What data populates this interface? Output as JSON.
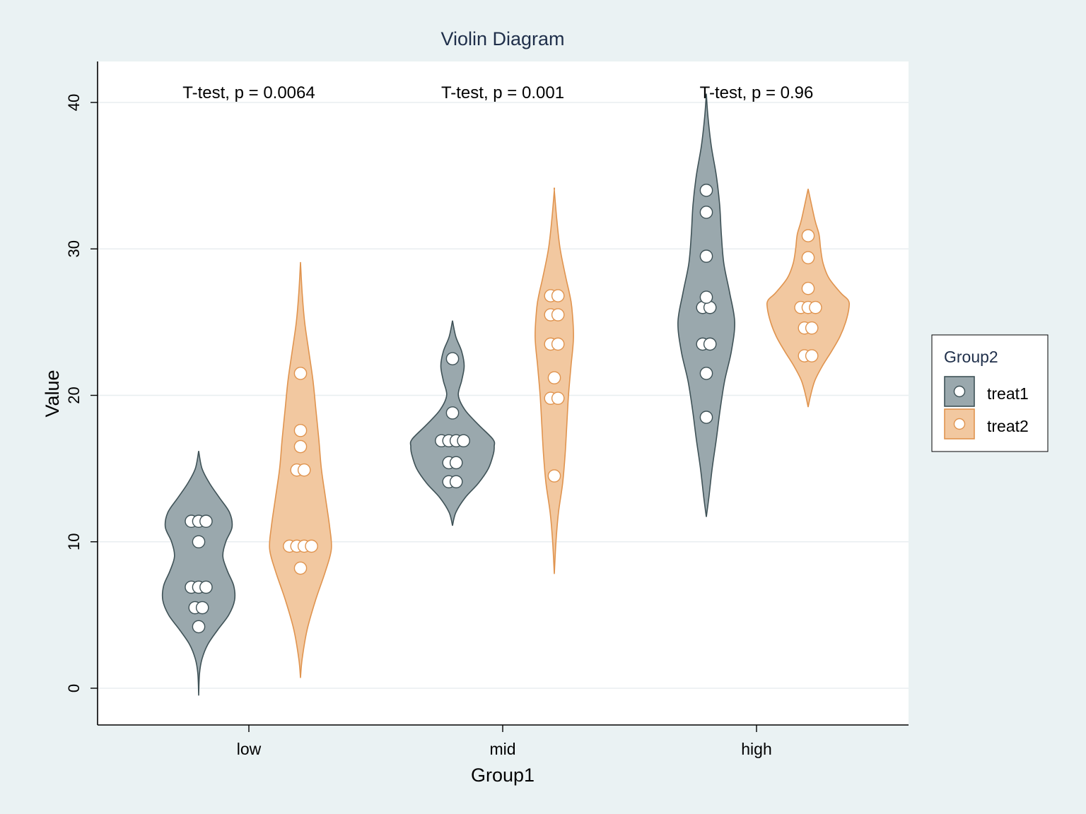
{
  "chart_data": {
    "type": "violin",
    "title": "Violin Diagram",
    "xlabel": "Group1",
    "ylabel": "Value",
    "ylim": [
      -2.5,
      43
    ],
    "yticks": [
      0,
      10,
      20,
      30,
      40
    ],
    "grid": true,
    "categories": [
      "low",
      "mid",
      "high"
    ],
    "legend": {
      "title": "Group2",
      "position": "right",
      "entries": [
        "treat1",
        "treat2"
      ]
    },
    "colors": {
      "treat1_fill": "#9aa8ad",
      "treat1_stroke": "#3f5257",
      "treat2_fill": "#f2c8a0",
      "treat2_stroke": "#e0944f",
      "background": "#eaf2f3",
      "panel": "#ffffff",
      "grid": "#e8eef0",
      "title": "#1f2f4a"
    },
    "annotations": [
      {
        "category": "low",
        "text": "T-test, p = 0.0064"
      },
      {
        "category": "mid",
        "text": "T-test, p = 0.001"
      },
      {
        "category": "high",
        "text": "T-test, p = 0.96"
      }
    ],
    "series": [
      {
        "name": "treat1",
        "violins": [
          {
            "category": "low",
            "ymin": -0.5,
            "ymax": 16.2,
            "profile": [
              [
                -0.5,
                0
              ],
              [
                1,
                0.02
              ],
              [
                2,
                0.08
              ],
              [
                3,
                0.22
              ],
              [
                4,
                0.46
              ],
              [
                5,
                0.72
              ],
              [
                6,
                0.86
              ],
              [
                7,
                0.84
              ],
              [
                8,
                0.69
              ],
              [
                9,
                0.58
              ],
              [
                10,
                0.65
              ],
              [
                11,
                0.8
              ],
              [
                12,
                0.74
              ],
              [
                13,
                0.5
              ],
              [
                14,
                0.26
              ],
              [
                15,
                0.08
              ],
              [
                16.2,
                0
              ]
            ],
            "points": [
              [
                0,
                4.2
              ],
              [
                -0.5,
                5.5
              ],
              [
                0.5,
                5.5
              ],
              [
                -1,
                6.9
              ],
              [
                0,
                6.9
              ],
              [
                1,
                6.9
              ],
              [
                0,
                10
              ],
              [
                -1,
                11.4
              ],
              [
                0,
                11.4
              ],
              [
                1,
                11.4
              ]
            ]
          },
          {
            "category": "mid",
            "ymin": 11.1,
            "ymax": 25.1,
            "profile": [
              [
                11.1,
                0
              ],
              [
                12,
                0.08
              ],
              [
                13,
                0.3
              ],
              [
                14,
                0.62
              ],
              [
                15,
                0.86
              ],
              [
                16,
                0.98
              ],
              [
                16.5,
                1
              ],
              [
                17,
                0.97
              ],
              [
                18,
                0.62
              ],
              [
                19,
                0.3
              ],
              [
                20,
                0.14
              ],
              [
                21,
                0.22
              ],
              [
                22,
                0.28
              ],
              [
                23,
                0.22
              ],
              [
                24,
                0.08
              ],
              [
                25.1,
                0
              ]
            ],
            "points": [
              [
                -0.5,
                14.1
              ],
              [
                0.5,
                14.1
              ],
              [
                -0.5,
                15.4
              ],
              [
                0.5,
                15.4
              ],
              [
                -1.5,
                16.9
              ],
              [
                -0.5,
                16.9
              ],
              [
                0.5,
                16.9
              ],
              [
                1.5,
                16.9
              ],
              [
                0,
                18.8
              ],
              [
                0,
                22.5
              ]
            ]
          },
          {
            "category": "high",
            "ymin": 11.7,
            "ymax": 40.6,
            "profile": [
              [
                11.7,
                0
              ],
              [
                13,
                0.06
              ],
              [
                15,
                0.14
              ],
              [
                17,
                0.24
              ],
              [
                19,
                0.33
              ],
              [
                21,
                0.44
              ],
              [
                23,
                0.6
              ],
              [
                25,
                0.68
              ],
              [
                27,
                0.56
              ],
              [
                29,
                0.42
              ],
              [
                31,
                0.36
              ],
              [
                33,
                0.32
              ],
              [
                35,
                0.24
              ],
              [
                37,
                0.12
              ],
              [
                39,
                0.04
              ],
              [
                40.6,
                0
              ]
            ],
            "points": [
              [
                0,
                18.5
              ],
              [
                0,
                21.5
              ],
              [
                -0.5,
                23.5
              ],
              [
                0.5,
                23.5
              ],
              [
                -0.5,
                26
              ],
              [
                0.5,
                26
              ],
              [
                0,
                26.7
              ],
              [
                0,
                29.5
              ],
              [
                0,
                32.5
              ],
              [
                0,
                34
              ]
            ]
          }
        ]
      },
      {
        "name": "treat2",
        "violins": [
          {
            "category": "low",
            "ymin": 0.7,
            "ymax": 29.1,
            "profile": [
              [
                0.7,
                0
              ],
              [
                2,
                0.04
              ],
              [
                4,
                0.16
              ],
              [
                6,
                0.36
              ],
              [
                8,
                0.6
              ],
              [
                9.5,
                0.74
              ],
              [
                11,
                0.7
              ],
              [
                13,
                0.6
              ],
              [
                15,
                0.5
              ],
              [
                17,
                0.44
              ],
              [
                19,
                0.37
              ],
              [
                21,
                0.3
              ],
              [
                23,
                0.2
              ],
              [
                25,
                0.1
              ],
              [
                27,
                0.04
              ],
              [
                29.1,
                0
              ]
            ],
            "points": [
              [
                0,
                8.2
              ],
              [
                -1.5,
                9.7
              ],
              [
                -0.5,
                9.7
              ],
              [
                0.5,
                9.7
              ],
              [
                1.5,
                9.7
              ],
              [
                -0.5,
                14.9
              ],
              [
                0.5,
                14.9
              ],
              [
                0,
                16.5
              ],
              [
                0,
                17.6
              ],
              [
                0,
                21.5
              ]
            ]
          },
          {
            "category": "mid",
            "ymin": 7.8,
            "ymax": 34,
            "profile": [
              [
                7.8,
                0
              ],
              [
                10,
                0.04
              ],
              [
                12,
                0.1
              ],
              [
                14,
                0.2
              ],
              [
                16,
                0.26
              ],
              [
                18,
                0.3
              ],
              [
                20,
                0.34
              ],
              [
                22,
                0.4
              ],
              [
                24,
                0.46
              ],
              [
                26,
                0.42
              ],
              [
                27,
                0.36
              ],
              [
                28,
                0.28
              ],
              [
                30,
                0.14
              ],
              [
                32,
                0.06
              ],
              [
                34,
                0
              ],
              [
                34,
                0
              ]
            ],
            "points": [
              [
                0,
                14.5
              ],
              [
                -0.5,
                19.8
              ],
              [
                0.5,
                19.8
              ],
              [
                0,
                21.2
              ],
              [
                -0.5,
                23.5
              ],
              [
                0.5,
                23.5
              ],
              [
                -0.5,
                25.5
              ],
              [
                0.5,
                25.5
              ],
              [
                -0.5,
                26.8
              ],
              [
                0.5,
                26.8
              ]
            ]
          },
          {
            "category": "high",
            "ymin": 19.2,
            "ymax": 34.1,
            "profile": [
              [
                19.2,
                0
              ],
              [
                20,
                0.06
              ],
              [
                21,
                0.16
              ],
              [
                22,
                0.34
              ],
              [
                23,
                0.56
              ],
              [
                24,
                0.76
              ],
              [
                25,
                0.9
              ],
              [
                26,
                0.98
              ],
              [
                26.5,
                0.96
              ],
              [
                27,
                0.78
              ],
              [
                28,
                0.5
              ],
              [
                29,
                0.36
              ],
              [
                30,
                0.3
              ],
              [
                31,
                0.26
              ],
              [
                32,
                0.16
              ],
              [
                34.1,
                0
              ]
            ],
            "points": [
              [
                -0.5,
                22.7
              ],
              [
                0.5,
                22.7
              ],
              [
                -0.5,
                24.6
              ],
              [
                0.5,
                24.6
              ],
              [
                -1,
                26
              ],
              [
                0,
                26
              ],
              [
                1,
                26
              ],
              [
                0,
                27.3
              ],
              [
                0,
                29.4
              ],
              [
                0,
                30.9
              ]
            ]
          }
        ]
      }
    ]
  }
}
